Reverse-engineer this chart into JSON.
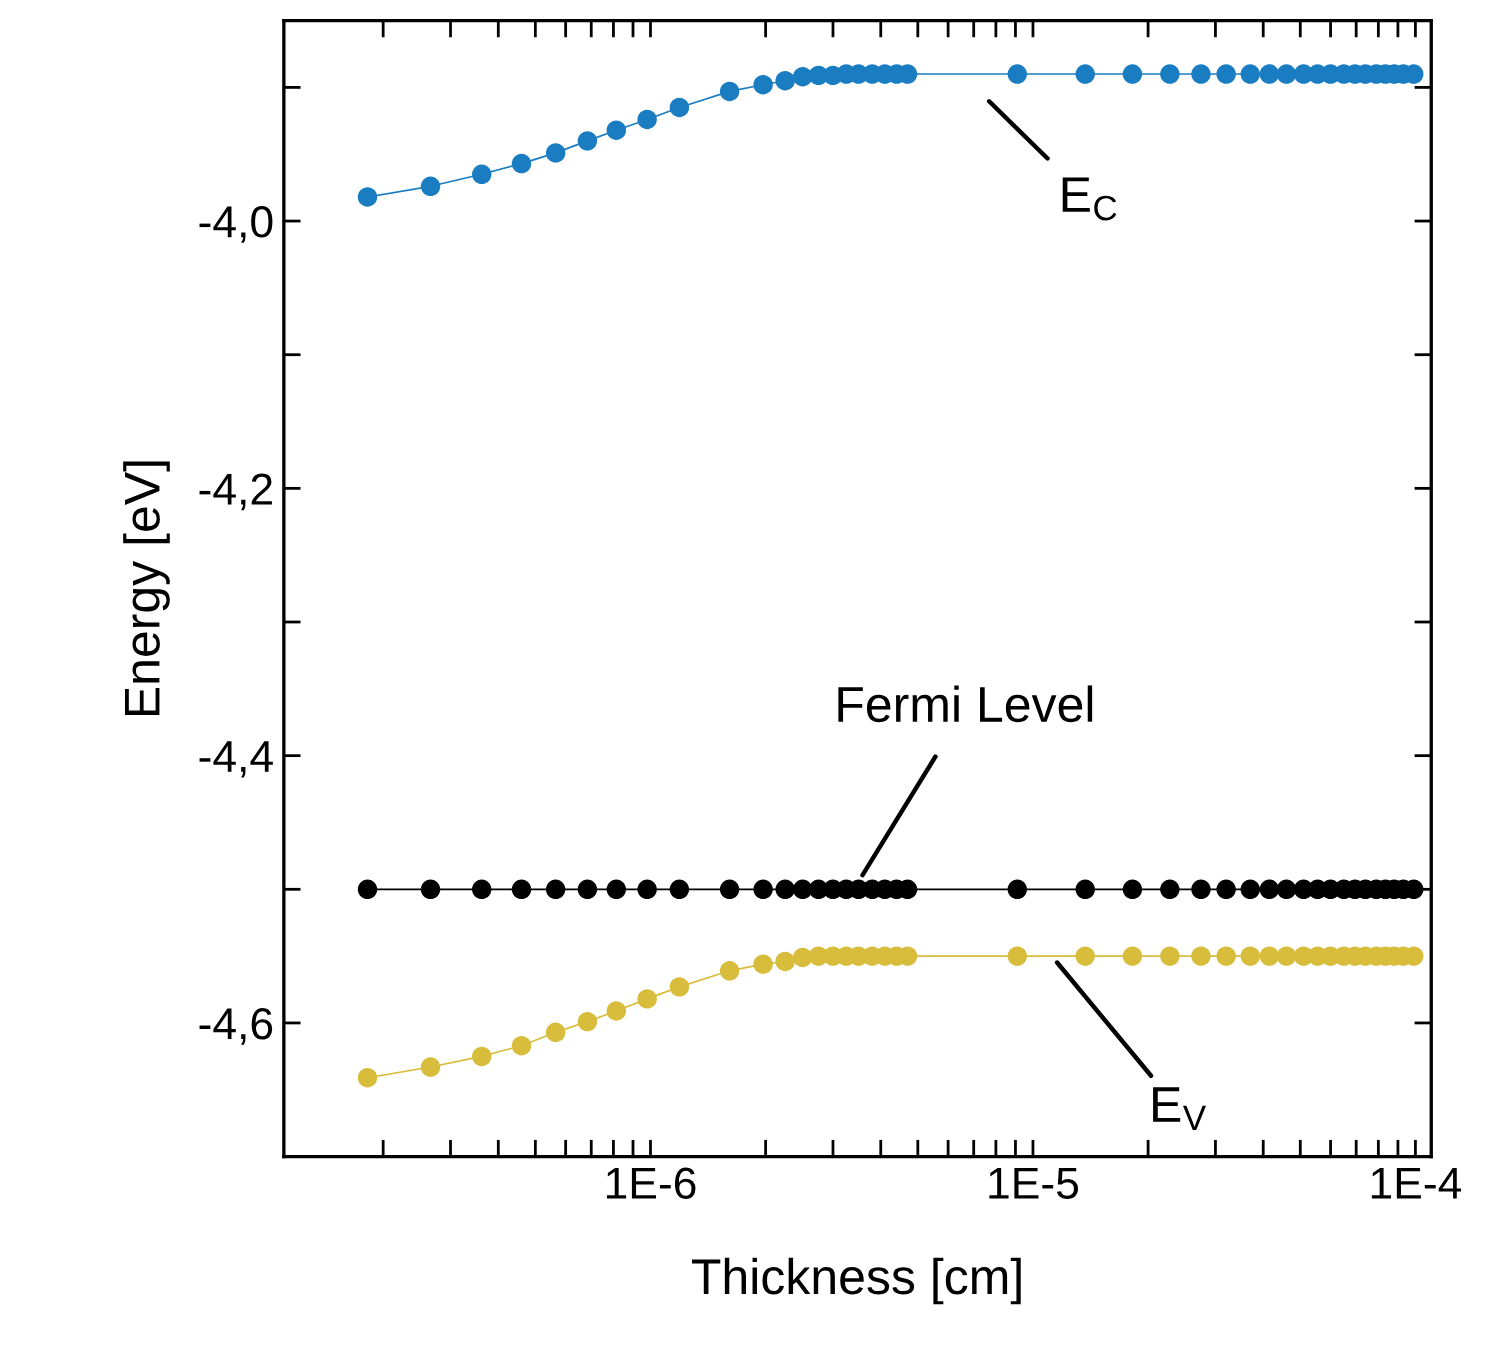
{
  "chart_data": {
    "type": "line",
    "xlabel": "Thickness [cm]",
    "ylabel": "Energy [eV]",
    "log": "x",
    "marker": "circle",
    "line_style": "solid",
    "grid": false,
    "xlim": [
      1.1e-07,
      0.00011
    ],
    "ylim": [
      -4.7,
      -3.85
    ],
    "xticks": [
      {
        "value": 2e-07,
        "label": null
      },
      {
        "value": 3e-07,
        "label": null
      },
      {
        "value": 4e-07,
        "label": null
      },
      {
        "value": 5e-07,
        "label": null
      },
      {
        "value": 6e-07,
        "label": null
      },
      {
        "value": 7e-07,
        "label": null
      },
      {
        "value": 8e-07,
        "label": null
      },
      {
        "value": 9e-07,
        "label": null
      },
      {
        "value": 1e-06,
        "label": "1E-6"
      },
      {
        "value": 2e-06,
        "label": null
      },
      {
        "value": 3e-06,
        "label": null
      },
      {
        "value": 4e-06,
        "label": null
      },
      {
        "value": 5e-06,
        "label": null
      },
      {
        "value": 6e-06,
        "label": null
      },
      {
        "value": 7e-06,
        "label": null
      },
      {
        "value": 8e-06,
        "label": null
      },
      {
        "value": 9e-06,
        "label": null
      },
      {
        "value": 1e-05,
        "label": "1E-5"
      },
      {
        "value": 2e-05,
        "label": null
      },
      {
        "value": 3e-05,
        "label": null
      },
      {
        "value": 4e-05,
        "label": null
      },
      {
        "value": 5e-05,
        "label": null
      },
      {
        "value": 6e-05,
        "label": null
      },
      {
        "value": 7e-05,
        "label": null
      },
      {
        "value": 8e-05,
        "label": null
      },
      {
        "value": 9e-05,
        "label": null
      },
      {
        "value": 0.0001,
        "label": "1E-4"
      }
    ],
    "yticks": [
      {
        "value": -3.9,
        "label": null
      },
      {
        "value": -4.0,
        "label": "-4,0"
      },
      {
        "value": -4.1,
        "label": null
      },
      {
        "value": -4.2,
        "label": "-4,2"
      },
      {
        "value": -4.3,
        "label": null
      },
      {
        "value": -4.4,
        "label": "-4,4"
      },
      {
        "value": -4.5,
        "label": null
      },
      {
        "value": -4.6,
        "label": "-4,6"
      }
    ],
    "x": [
      1.82e-07,
      2.66e-07,
      3.62e-07,
      4.6e-07,
      5.65e-07,
      6.84e-07,
      8.14e-07,
      9.8e-07,
      1.19e-06,
      1.61e-06,
      1.97e-06,
      2.25e-06,
      2.5e-06,
      2.75e-06,
      3e-06,
      3.25e-06,
      3.5e-06,
      3.8e-06,
      4.1e-06,
      4.4e-06,
      4.7e-06,
      9.1e-06,
      1.37e-05,
      1.82e-05,
      2.28e-05,
      2.75e-05,
      3.2e-05,
      3.7e-05,
      4.15e-05,
      4.6e-05,
      5.1e-05,
      5.55e-05,
      6e-05,
      6.5e-05,
      6.95e-05,
      7.4e-05,
      7.9e-05,
      8.35e-05,
      8.8e-05,
      9.3e-05,
      9.9e-05
    ],
    "series": [
      {
        "color": "#1a7dc2",
        "values": [
          -3.982,
          -3.974,
          -3.965,
          -3.957,
          -3.949,
          -3.94,
          -3.932,
          -3.924,
          -3.915,
          -3.903,
          -3.898,
          -3.895,
          -3.892,
          -3.891,
          -3.891,
          -3.89,
          -3.89,
          -3.89,
          -3.89,
          -3.89,
          -3.89,
          -3.89,
          -3.89,
          -3.89,
          -3.89,
          -3.89,
          -3.89,
          -3.89,
          -3.89,
          -3.89,
          -3.89,
          -3.89,
          -3.89,
          -3.89,
          -3.89,
          -3.89,
          -3.89,
          -3.89,
          -3.89,
          -3.89,
          -3.89
        ]
      },
      {
        "color": "#000000",
        "values": [
          -4.5,
          -4.5,
          -4.5,
          -4.5,
          -4.5,
          -4.5,
          -4.5,
          -4.5,
          -4.5,
          -4.5,
          -4.5,
          -4.5,
          -4.5,
          -4.5,
          -4.5,
          -4.5,
          -4.5,
          -4.5,
          -4.5,
          -4.5,
          -4.5,
          -4.5,
          -4.5,
          -4.5,
          -4.5,
          -4.5,
          -4.5,
          -4.5,
          -4.5,
          -4.5,
          -4.5,
          -4.5,
          -4.5,
          -4.5,
          -4.5,
          -4.5,
          -4.5,
          -4.5,
          -4.5,
          -4.5,
          -4.5
        ]
      },
      {
        "color": "#d8bd3c",
        "values": [
          -4.641,
          -4.633,
          -4.625,
          -4.617,
          -4.607,
          -4.599,
          -4.591,
          -4.582,
          -4.573,
          -4.561,
          -4.556,
          -4.554,
          -4.551,
          -4.55,
          -4.55,
          -4.55,
          -4.55,
          -4.55,
          -4.55,
          -4.55,
          -4.55,
          -4.55,
          -4.55,
          -4.55,
          -4.55,
          -4.55,
          -4.55,
          -4.55,
          -4.55,
          -4.55,
          -4.55,
          -4.55,
          -4.55,
          -4.55,
          -4.55,
          -4.55,
          -4.55,
          -4.55,
          -4.55,
          -4.55,
          -4.55
        ]
      }
    ],
    "annotations": [
      {
        "text": "E$_{C}$",
        "x": 6.5e-06,
        "y": -3.89
      },
      {
        "text": "Fermi Level",
        "x": 3.4e-06,
        "y": -4.5
      },
      {
        "text": "E$_{V}$",
        "x": 1.12e-05,
        "y": -4.55
      }
    ]
  }
}
